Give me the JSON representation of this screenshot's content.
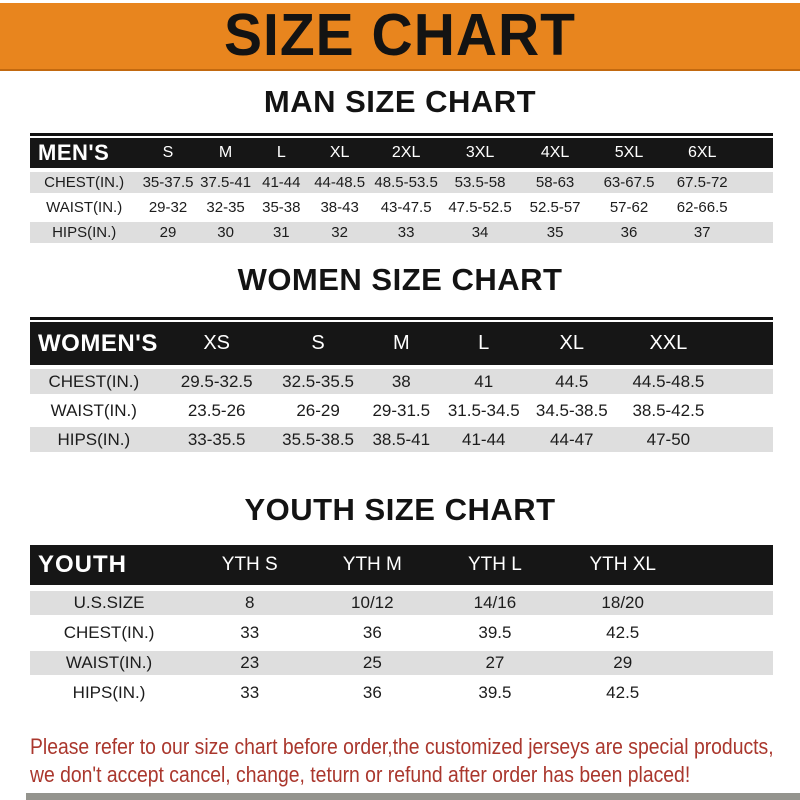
{
  "banner": {
    "title": "SIZE CHART",
    "bg_color": "#E8851E"
  },
  "sections": {
    "men_heading": "MAN SIZE CHART",
    "women_heading": "WOMEN SIZE CHART",
    "youth_heading": "YOUTH SIZE CHART"
  },
  "tables": {
    "men": {
      "corner": "MEN'S",
      "sizes": [
        "S",
        "M",
        "L",
        "XL",
        "2XL",
        "3XL",
        "4XL",
        "5XL",
        "6XL"
      ],
      "rows": [
        {
          "label": "CHEST(IN.)",
          "values": [
            "35-37.5",
            "37.5-41",
            "41-44",
            "44-48.5",
            "48.5-53.5",
            "53.5-58",
            "58-63",
            "63-67.5",
            "67.5-72"
          ]
        },
        {
          "label": "WAIST(IN.)",
          "values": [
            "29-32",
            "32-35",
            "35-38",
            "38-43",
            "43-47.5",
            "47.5-52.5",
            "52.5-57",
            "57-62",
            "62-66.5"
          ]
        },
        {
          "label": "HIPS(IN.)",
          "values": [
            "29",
            "30",
            "31",
            "32",
            "33",
            "34",
            "35",
            "36",
            "37"
          ]
        }
      ]
    },
    "women": {
      "corner": "WOMEN'S",
      "sizes": [
        "XS",
        "S",
        "M",
        "L",
        "XL",
        "XXL"
      ],
      "rows": [
        {
          "label": "CHEST(IN.)",
          "values": [
            "29.5-32.5",
            "32.5-35.5",
            "38",
            "41",
            "44.5",
            "44.5-48.5"
          ]
        },
        {
          "label": "WAIST(IN.)",
          "values": [
            "23.5-26",
            "26-29",
            "29-31.5",
            "31.5-34.5",
            "34.5-38.5",
            "38.5-42.5"
          ]
        },
        {
          "label": "HIPS(IN.)",
          "values": [
            "33-35.5",
            "35.5-38.5",
            "38.5-41",
            "41-44",
            "44-47",
            "47-50"
          ]
        }
      ]
    },
    "youth": {
      "corner": "YOUTH",
      "sizes": [
        "YTH S",
        "YTH M",
        "YTH L",
        "YTH XL"
      ],
      "rows": [
        {
          "label": "U.S.SIZE",
          "values": [
            "8",
            "10/12",
            "14/16",
            "18/20"
          ]
        },
        {
          "label": "CHEST(IN.)",
          "values": [
            "33",
            "36",
            "39.5",
            "42.5"
          ]
        },
        {
          "label": "WAIST(IN.)",
          "values": [
            "23",
            "25",
            "27",
            "29"
          ]
        },
        {
          "label": "HIPS(IN.)",
          "values": [
            "33",
            "36",
            "39.5",
            "42.5"
          ]
        }
      ]
    }
  },
  "footer": {
    "line1": "Please refer to our size chart before order,the customized jerseys are special products,",
    "line2": "we don't accept cancel, change, teturn or refund after order has been placed!",
    "text_color": "#AA372D"
  }
}
